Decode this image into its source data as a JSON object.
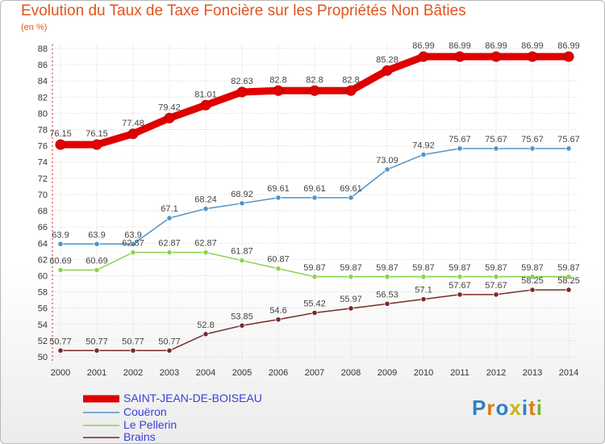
{
  "title": "Evolution du Taux de Taxe Foncière sur les Propriétés Non Bâties",
  "unit": "(en %)",
  "logo": "Proxiti",
  "colors": {
    "title": "#e2531c",
    "grid": "#d6d6d6"
  },
  "chart_data": {
    "type": "line",
    "title": "Evolution du Taux de Taxe Foncière sur les Propriétés Non Bâties",
    "ylabel": "(en %)",
    "ylim": [
      50,
      88
    ],
    "ytick_step": 2,
    "grid": true,
    "legend_position": "bottom-left",
    "x": [
      "2000",
      "2001",
      "2002",
      "2003",
      "2004",
      "2005",
      "2006",
      "2007",
      "2008",
      "2009",
      "2010",
      "2011",
      "2012",
      "2013",
      "2014"
    ],
    "series": [
      {
        "name": "SAINT-JEAN-DE-BOISEAU",
        "color": "#e00000",
        "width": 9,
        "labels": "above",
        "values": [
          76.15,
          76.15,
          77.48,
          79.42,
          81.01,
          82.63,
          82.8,
          82.8,
          82.8,
          85.28,
          86.99,
          86.99,
          86.99,
          86.99,
          86.99
        ]
      },
      {
        "name": "Couëron",
        "color": "#4f95c9",
        "width": 1.5,
        "labels": "above",
        "values": [
          63.9,
          63.9,
          63.9,
          67.1,
          68.24,
          68.92,
          69.61,
          69.61,
          69.61,
          73.09,
          74.92,
          75.67,
          75.67,
          75.67,
          75.67
        ]
      },
      {
        "name": "Le Pellerin",
        "color": "#8bd34a",
        "width": 1.5,
        "labels": "above",
        "values": [
          60.69,
          60.69,
          62.87,
          62.87,
          62.87,
          61.87,
          60.87,
          59.87,
          59.87,
          59.87,
          59.87,
          59.87,
          59.87,
          59.87,
          59.87
        ]
      },
      {
        "name": "Brains",
        "color": "#7a2a2a",
        "width": 1.5,
        "labels": "above",
        "values": [
          50.77,
          50.77,
          50.77,
          50.77,
          52.8,
          53.85,
          54.6,
          55.42,
          55.97,
          56.53,
          57.1,
          57.67,
          57.67,
          58.25,
          58.25
        ]
      }
    ]
  }
}
